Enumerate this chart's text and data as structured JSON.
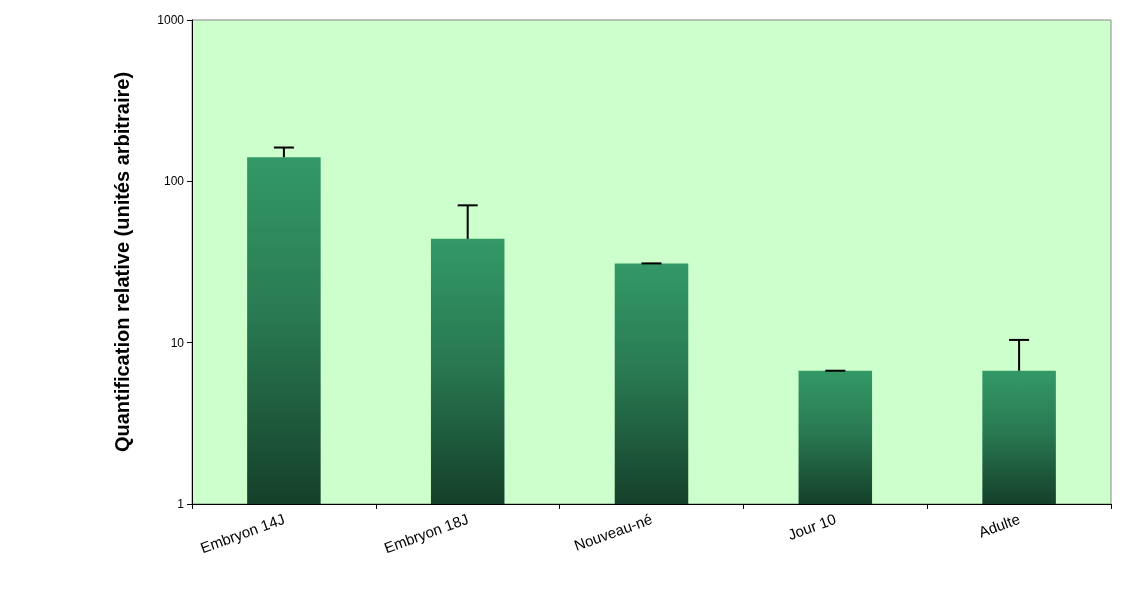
{
  "chart_data": {
    "type": "bar",
    "ylabel": "Quantification relative (unités arbitraire)",
    "categories": [
      "Embryon 14J",
      "Embryon 18J",
      "Nouveau-né",
      "Jour 10",
      "Adulte"
    ],
    "values": [
      141,
      44,
      31,
      6.7,
      6.7
    ],
    "errors": [
      [
        141,
        162
      ],
      [
        44,
        71
      ],
      [
        31,
        31
      ],
      [
        6.7,
        6.7
      ],
      [
        6.7,
        10.4
      ]
    ],
    "color": "#339966",
    "log": true,
    "ylim": [
      1,
      1000
    ],
    "yticks": [
      1,
      10,
      100,
      1000
    ],
    "grid": false
  }
}
